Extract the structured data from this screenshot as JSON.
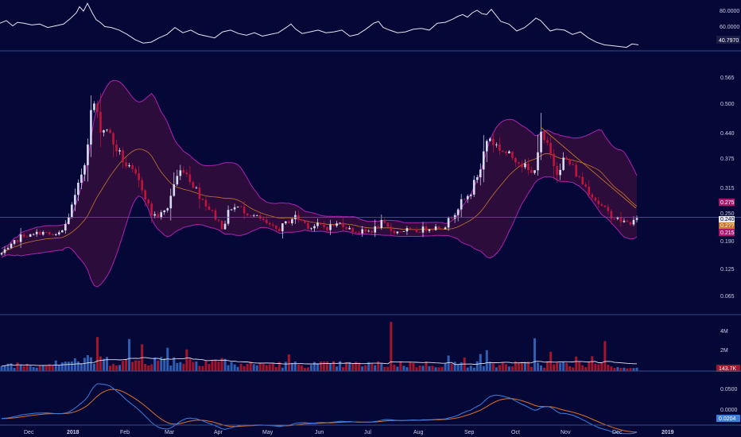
{
  "colors": {
    "background": "#050836",
    "separator": "#3a4c8a",
    "text": "#c9cbe6",
    "up_candle": "#d8dcf4",
    "down_candle": "#c0143c",
    "band_line": "#b01fb5",
    "band_fill": "#3a0d3d",
    "basis": "#c8762a",
    "volume_up": "#2f5fb3",
    "volume_down": "#a5142c",
    "volume_ma": "#e0e0ee",
    "macd": "#3a7ee0",
    "signal": "#e0702a"
  },
  "chart_data": [
    {
      "type": "line",
      "panel": "oscillator",
      "y_ticks": [
        "80.0000",
        "60.0000"
      ],
      "last_value": "40.7970",
      "ylim": [
        33,
        90
      ],
      "x": [
        0,
        8,
        16,
        22,
        30,
        40,
        50,
        60,
        70,
        80,
        88,
        96,
        100,
        105,
        110,
        116,
        121,
        126,
        132,
        140,
        150,
        160,
        170,
        180,
        190,
        200,
        210,
        215,
        220,
        230,
        240,
        250,
        260,
        270,
        280,
        290,
        300,
        310,
        320,
        330,
        340,
        350,
        360,
        366,
        372,
        380,
        390,
        400,
        410,
        420,
        430,
        440,
        450,
        460,
        470,
        476,
        482,
        490,
        500,
        510,
        520,
        530,
        540,
        550,
        560,
        570,
        576,
        582,
        588,
        594,
        600,
        606,
        612,
        618,
        624,
        630,
        640,
        650,
        660,
        668,
        674,
        680,
        686,
        692,
        700,
        710,
        720,
        730,
        740,
        750,
        760,
        770,
        780,
        788,
        795,
        803
      ],
      "values": [
        65,
        68,
        62,
        66,
        65,
        63,
        64,
        60,
        62,
        64,
        70,
        77,
        84,
        79,
        88,
        77,
        69,
        66,
        61,
        60,
        57,
        52,
        46,
        42,
        43,
        48,
        52,
        56,
        60,
        54,
        57,
        52,
        50,
        48,
        55,
        57,
        53,
        51,
        54,
        50,
        52,
        54,
        60,
        64,
        58,
        53,
        55,
        57,
        54,
        55,
        57,
        50,
        52,
        58,
        65,
        67,
        60,
        57,
        54,
        55,
        58,
        59,
        57,
        65,
        66,
        70,
        73,
        75,
        72,
        77,
        80,
        76,
        75,
        81,
        74,
        67,
        64,
        56,
        60,
        66,
        71,
        68,
        62,
        56,
        58,
        57,
        52,
        55,
        48,
        43,
        40,
        39,
        38,
        37,
        41,
        40
      ]
    },
    {
      "type": "candlestick",
      "panel": "price",
      "x_ticks": [
        "Dec",
        "2018",
        "Feb",
        "Mar",
        "Apr",
        "May",
        "Jun",
        "Jul",
        "Aug",
        "Sep",
        "Oct",
        "Nov",
        "Dec",
        "2019"
      ],
      "y_ticks": [
        "0.565",
        "0.500",
        "0.440",
        "0.375",
        "0.315",
        "0.250",
        "0.190",
        "0.125",
        "0.065"
      ],
      "price_labels": [
        "0.275",
        "0.240",
        "0.2??",
        "0.215"
      ],
      "ylim": [
        0.03,
        0.62
      ],
      "anchor_x": [
        0,
        10,
        20,
        30,
        40,
        50,
        60,
        70,
        80,
        88,
        96,
        103,
        108,
        113,
        118,
        123,
        128,
        135,
        140,
        150,
        160,
        170,
        180,
        190,
        200,
        210,
        220,
        230,
        240,
        250,
        260,
        270,
        280,
        290,
        300,
        310,
        320,
        330,
        340,
        350,
        360,
        370,
        380,
        390,
        400,
        410,
        420,
        430,
        440,
        450,
        460,
        470,
        480,
        490,
        500,
        510,
        520,
        530,
        540,
        550,
        560,
        570,
        580,
        590,
        600,
        605,
        610,
        615,
        620,
        630,
        640,
        650,
        660,
        670,
        680,
        685,
        690,
        700,
        710,
        720,
        730,
        740,
        750,
        760,
        770,
        780,
        790,
        800
      ],
      "close_path": [
        0.165,
        0.175,
        0.195,
        0.21,
        0.205,
        0.215,
        0.21,
        0.205,
        0.22,
        0.26,
        0.3,
        0.35,
        0.38,
        0.47,
        0.505,
        0.47,
        0.44,
        0.45,
        0.42,
        0.39,
        0.36,
        0.34,
        0.31,
        0.255,
        0.25,
        0.265,
        0.33,
        0.36,
        0.33,
        0.3,
        0.275,
        0.25,
        0.225,
        0.27,
        0.27,
        0.26,
        0.25,
        0.24,
        0.225,
        0.22,
        0.235,
        0.25,
        0.24,
        0.225,
        0.23,
        0.225,
        0.23,
        0.235,
        0.22,
        0.215,
        0.215,
        0.22,
        0.235,
        0.22,
        0.215,
        0.22,
        0.215,
        0.22,
        0.225,
        0.225,
        0.23,
        0.255,
        0.28,
        0.295,
        0.34,
        0.36,
        0.41,
        0.43,
        0.415,
        0.4,
        0.385,
        0.38,
        0.36,
        0.34,
        0.43,
        0.415,
        0.4,
        0.35,
        0.38,
        0.36,
        0.33,
        0.31,
        0.285,
        0.265,
        0.25,
        0.24,
        0.235,
        0.24
      ]
    },
    {
      "type": "bar",
      "panel": "volume",
      "y_ticks": [
        "4M",
        "2M"
      ],
      "last_value": "143.7K",
      "ylim": [
        0,
        5200000
      ]
    },
    {
      "type": "line",
      "panel": "macd",
      "y_ticks": [
        "0.0500",
        "0.0000"
      ],
      "last_value": "0.0204",
      "ylim": [
        -0.012,
        0.088
      ]
    }
  ]
}
